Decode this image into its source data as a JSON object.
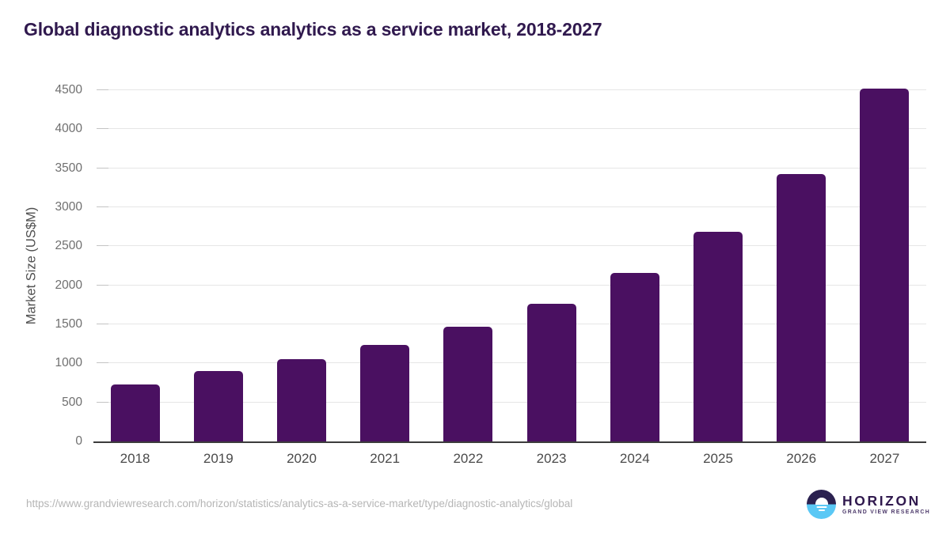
{
  "header": {
    "title": "Global diagnostic analytics analytics as a service market, 2018-2027"
  },
  "chart_data": {
    "type": "bar",
    "title": "Global diagnostic analytics analytics as a service market, 2018-2027",
    "categories": [
      "2018",
      "2019",
      "2020",
      "2021",
      "2022",
      "2023",
      "2024",
      "2025",
      "2026",
      "2027"
    ],
    "values": [
      734,
      902,
      1054,
      1237,
      1471,
      1763,
      2155,
      2687,
      3430,
      4520
    ],
    "xlabel": "",
    "ylabel": "Market Size (US$M)",
    "ylim": [
      0,
      4500
    ],
    "yticks": [
      0,
      500,
      1000,
      1500,
      2000,
      2500,
      3000,
      3500,
      4000,
      4500
    ],
    "grid": true,
    "legend": false,
    "bar_color_hex": "#4a1061"
  },
  "footer": {
    "source_url": "https://www.grandviewresearch.com/horizon/statistics/analytics-as-a-service-market/type/diagnostic-analytics/global",
    "logo": {
      "brand": "HORIZON",
      "tagline": "GRAND VIEW RESEARCH",
      "icon": "horizon-sun-circle-icon"
    }
  },
  "colors": {
    "title": "#30194e",
    "bar": "#4a1061",
    "gridline": "#e6e6e6",
    "tick": "#c4c4c4",
    "axis_line": "#3c3c3c",
    "y_tick_label": "#6f6f6f",
    "x_tick_label": "#4a4a4a",
    "axis_title": "#4f4f4f",
    "url_text": "#b5b5b5",
    "logo_dark": "#2b2150",
    "logo_blue": "#5ac8f5"
  }
}
